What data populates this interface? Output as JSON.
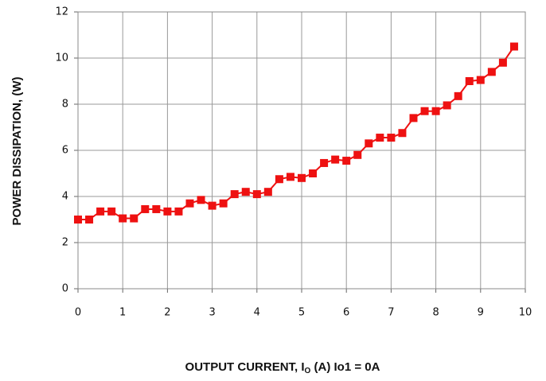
{
  "chart_data": {
    "type": "line",
    "ylabel": "POWER DISSIPATION, (W)",
    "xlabel": {
      "prefix": "OUTPUT CURRENT, I",
      "subscript": "O",
      "suffix": " (A) Io1 = 0A"
    },
    "x": [
      0,
      0.25,
      0.5,
      0.75,
      1,
      1.25,
      1.5,
      1.75,
      2,
      2.25,
      2.5,
      2.75,
      3,
      3.25,
      3.5,
      3.75,
      4,
      4.25,
      4.5,
      4.75,
      5,
      5.25,
      5.5,
      5.75,
      6,
      6.25,
      6.5,
      6.75,
      7,
      7.25,
      7.5,
      7.75,
      8,
      8.25,
      8.5,
      8.75,
      9,
      9.25,
      9.5,
      9.75
    ],
    "series": [
      {
        "color": "#ee1111",
        "values": [
          3.0,
          3.0,
          3.35,
          3.35,
          3.05,
          3.05,
          3.45,
          3.45,
          3.35,
          3.35,
          3.7,
          3.85,
          3.6,
          3.7,
          4.1,
          4.2,
          4.1,
          4.2,
          4.75,
          4.85,
          4.8,
          5.0,
          5.45,
          5.6,
          5.55,
          5.8,
          6.3,
          6.55,
          6.55,
          6.75,
          7.4,
          7.7,
          7.7,
          7.95,
          8.35,
          9.0,
          9.05,
          9.4,
          9.8,
          10.5
        ]
      }
    ],
    "xlim": [
      0,
      10
    ],
    "xticks": [
      0,
      1,
      2,
      3,
      4,
      5,
      6,
      7,
      8,
      9,
      10
    ],
    "ylim": [
      0,
      12
    ],
    "yticks": [
      0,
      2,
      4,
      6,
      8,
      10,
      12
    ],
    "grid": true
  }
}
